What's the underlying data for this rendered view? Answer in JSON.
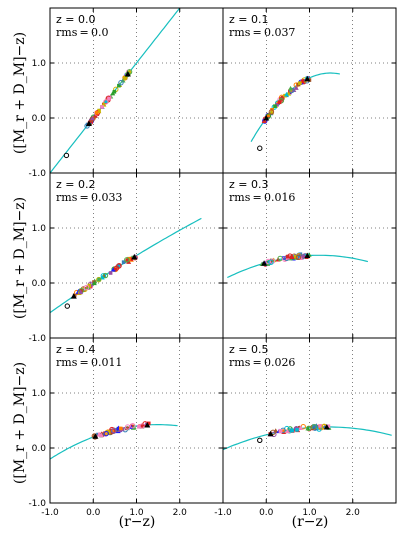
{
  "chart_data": {
    "type": "scatter",
    "layout": "3 rows x 2 columns, shared axes",
    "xlabel": "(r−z)",
    "ylabel": "([M_r + D_M]−z)",
    "xlim": [
      -1.0,
      3.0
    ],
    "ylim": [
      -1.0,
      2.0
    ],
    "xticks": [
      "-1.0",
      "0.0",
      "1.0",
      "2.0"
    ],
    "yticks": [
      "-1.0",
      "0.0",
      "1.0"
    ],
    "grid": "dotted",
    "fit_color": "#17bfbf",
    "panels": [
      {
        "z_label": "z = 0.0",
        "rms_label": "rms = 0.0",
        "fit_poly": [
          0.0,
          1.0,
          0.0
        ],
        "fit_range": [
          -1.0,
          2.1
        ],
        "points_x_range": [
          -0.15,
          0.85
        ],
        "open_point": [
          -0.62,
          -0.68
        ]
      },
      {
        "z_label": "z = 0.1",
        "rms_label": "rms = 0.037",
        "fit_poly": [
          0.0,
          1.1,
          -0.37
        ],
        "fit_range": [
          -0.35,
          1.7
        ],
        "points_x_range": [
          -0.05,
          1.0
        ],
        "open_point": [
          -0.15,
          -0.55
        ]
      },
      {
        "z_label": "z = 0.2",
        "rms_label": "rms = 0.033",
        "fit_poly": [
          0.0,
          0.52,
          -0.02
        ],
        "fit_range": [
          -1.0,
          2.5
        ],
        "points_x_range": [
          -0.5,
          1.0
        ],
        "open_point": [
          -0.6,
          -0.42
        ]
      },
      {
        "z_label": "z = 0.3",
        "rms_label": "rms = 0.016",
        "fit_poly": [
          0.37,
          0.22,
          -0.09
        ],
        "fit_range": [
          -0.9,
          2.35
        ],
        "points_x_range": [
          -0.1,
          1.0
        ],
        "open_point": null
      },
      {
        "z_label": "z = 0.4",
        "rms_label": "rms = 0.011",
        "fit_poly": [
          0.2,
          0.3,
          -0.1
        ],
        "fit_range": [
          -1.0,
          1.95
        ],
        "points_x_range": [
          0.0,
          1.3
        ],
        "open_point": null
      },
      {
        "z_label": "z = 0.5",
        "rms_label": "rms = 0.026",
        "fit_poly": [
          0.24,
          0.2,
          -0.07
        ],
        "fit_range": [
          -1.0,
          2.9
        ],
        "points_x_range": [
          0.05,
          1.45
        ],
        "open_point": [
          -0.15,
          0.14
        ]
      }
    ]
  }
}
